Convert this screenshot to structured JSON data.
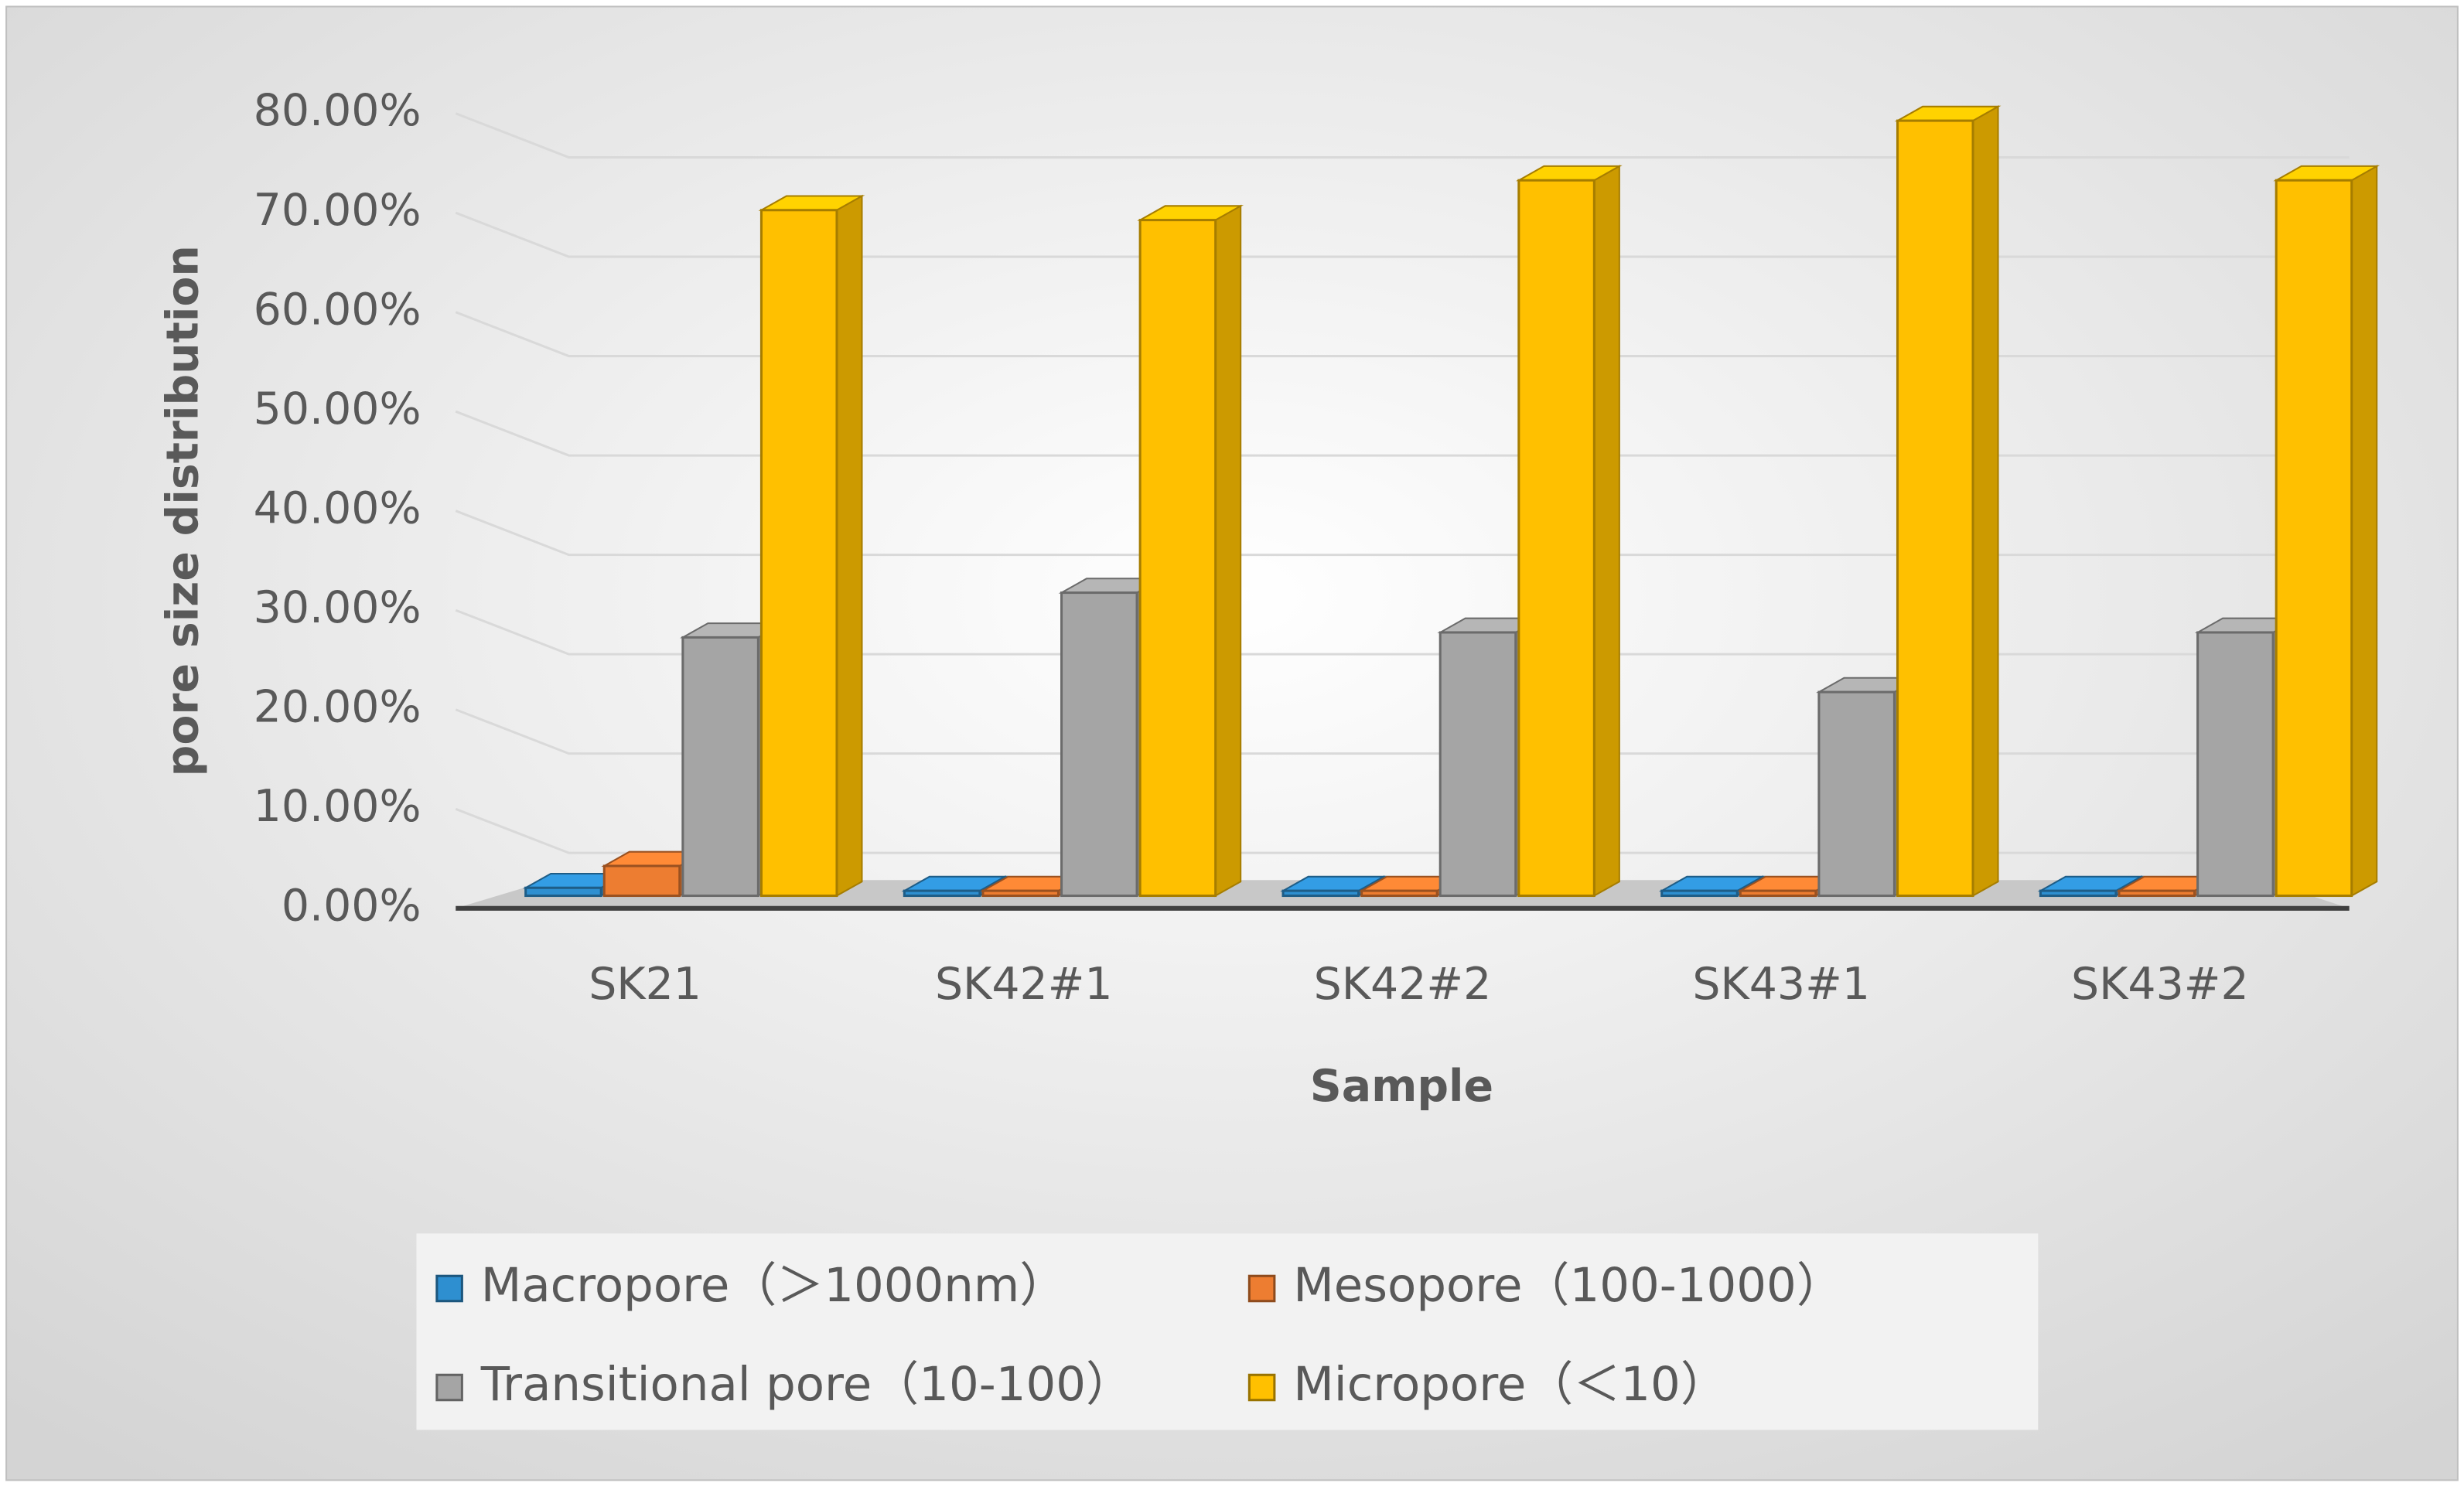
{
  "chart_data": {
    "type": "bar3d",
    "x_label": "Sample",
    "y_label": "pore size distribution",
    "categories": [
      "SK21",
      "SK42#1",
      "SK42#2",
      "SK43#1",
      "SK43#2"
    ],
    "series": [
      {
        "name": "Macropore（＞1000nm）",
        "color": "#2e8fd0",
        "values": [
          0.8,
          0.5,
          0.5,
          0.5,
          0.5
        ]
      },
      {
        "name": "Mesopore（100-1000）",
        "color": "#ed7d31",
        "values": [
          3,
          0.5,
          0.5,
          0.5,
          0.5
        ]
      },
      {
        "name": "Transitional pore（10-100）",
        "color": "#a5a5a5",
        "values": [
          26,
          30.5,
          26.5,
          20.5,
          26.5
        ]
      },
      {
        "name": "Micropore（＜10）",
        "color": "#ffc000",
        "values": [
          69,
          68,
          72,
          78,
          72
        ]
      }
    ],
    "ylim": [
      0,
      80
    ],
    "yticks": [
      {
        "value": 0,
        "label": "0.00%"
      },
      {
        "value": 10,
        "label": "10.00%"
      },
      {
        "value": 20,
        "label": "20.00%"
      },
      {
        "value": 30,
        "label": "30.00%"
      },
      {
        "value": 40,
        "label": "40.00%"
      },
      {
        "value": 50,
        "label": "50.00%"
      },
      {
        "value": 60,
        "label": "60.00%"
      },
      {
        "value": 70,
        "label": "70.00%"
      },
      {
        "value": 80,
        "label": "80.00%"
      }
    ],
    "grid": true,
    "legend": "bottom"
  }
}
